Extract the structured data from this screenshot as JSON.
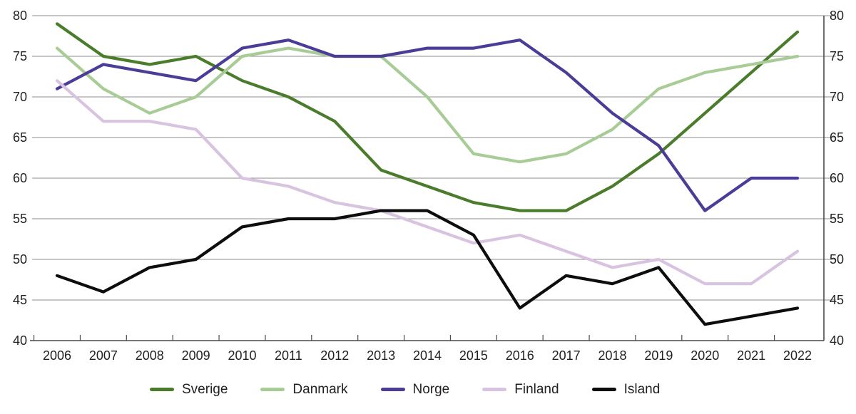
{
  "chart_data": {
    "type": "line",
    "title": "",
    "xlabel": "",
    "ylabel": "",
    "x": [
      2006,
      2007,
      2008,
      2009,
      2010,
      2011,
      2012,
      2013,
      2014,
      2015,
      2016,
      2017,
      2018,
      2019,
      2020,
      2021,
      2022
    ],
    "series": [
      {
        "name": "Sverige",
        "color": "#4a7c2c",
        "values": [
          79,
          75,
          74,
          75,
          72,
          70,
          67,
          61,
          59,
          57,
          56,
          56,
          59,
          63,
          68,
          73,
          78
        ]
      },
      {
        "name": "Danmark",
        "color": "#a8cc96",
        "values": [
          76,
          71,
          68,
          70,
          75,
          76,
          75,
          75,
          70,
          63,
          62,
          63,
          66,
          71,
          73,
          74,
          75
        ]
      },
      {
        "name": "Norge",
        "color": "#4b3c98",
        "values": [
          71,
          74,
          73,
          72,
          76,
          77,
          75,
          75,
          76,
          76,
          77,
          73,
          68,
          64,
          56,
          60,
          60
        ]
      },
      {
        "name": "Finland",
        "color": "#d8c3e0",
        "values": [
          72,
          67,
          67,
          66,
          60,
          59,
          57,
          56,
          54,
          52,
          53,
          51,
          49,
          50,
          47,
          47,
          51
        ]
      },
      {
        "name": "Island",
        "color": "#0d0d0d",
        "values": [
          48,
          46,
          49,
          50,
          54,
          55,
          55,
          56,
          56,
          53,
          44,
          48,
          47,
          49,
          42,
          43,
          44
        ]
      }
    ],
    "ylim": [
      40,
      80
    ],
    "ytick_step": 5,
    "yticks": [
      40,
      45,
      50,
      55,
      60,
      65,
      70,
      75,
      80
    ],
    "grid": "horizontal",
    "y_axis_sides": [
      "left",
      "right"
    ],
    "legend_position": "bottom"
  },
  "colors": {
    "gridline": "#8c8c8c",
    "axis": "#4a4a4c",
    "text": "#231f20",
    "background": "#ffffff"
  }
}
